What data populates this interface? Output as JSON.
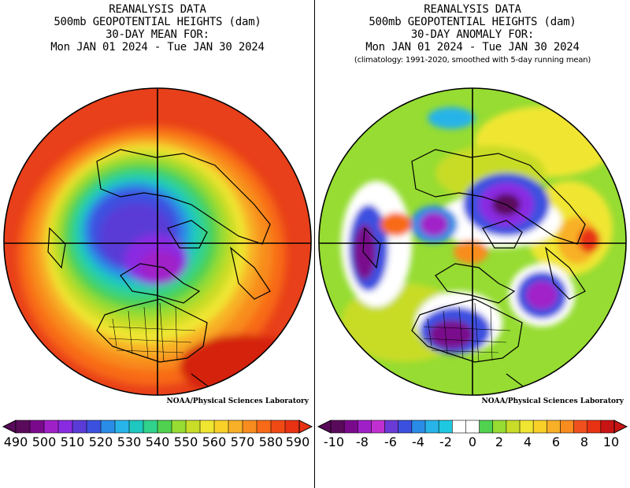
{
  "left_panel": {
    "title_lines": [
      "REANALYSIS DATA",
      "500mb GEOPOTENTIAL HEIGHTS (dam)",
      "30-DAY MEAN FOR:",
      "Mon JAN 01 2024 - Tue JAN 30 2024"
    ],
    "credit": "NOAA/Physical Sciences Laboratory",
    "colorbar": {
      "ticks": [
        "490",
        "500",
        "510",
        "520",
        "530",
        "540",
        "550",
        "560",
        "570",
        "580",
        "590"
      ],
      "colors": [
        "#5a0a5a",
        "#7a0a8c",
        "#a020c8",
        "#8a2be2",
        "#5a3bd6",
        "#3c50e0",
        "#2a8ce6",
        "#28b4e8",
        "#1ec8c0",
        "#30d28c",
        "#50d250",
        "#96dc32",
        "#c8dc28",
        "#f0e632",
        "#f8d028",
        "#f8b028",
        "#f88c1e",
        "#f86a18",
        "#f04a14",
        "#e83214"
      ]
    }
  },
  "right_panel": {
    "title_lines": [
      "REANALYSIS DATA",
      "500mb GEOPOTENTIAL HEIGHTS (dam)",
      "30-DAY ANOMALY FOR:",
      "Mon JAN 01 2024 - Tue JAN 30 2024"
    ],
    "note": "(climatology: 1991-2020, smoothed with 5-day running mean)",
    "credit": "NOAA/Physical Sciences Laboratory",
    "colorbar": {
      "ticks": [
        "-10",
        "-8",
        "-6",
        "-4",
        "-2",
        "0",
        "2",
        "4",
        "6",
        "8",
        "10"
      ],
      "colors": [
        "#5a0a5a",
        "#7a0a8c",
        "#a020c8",
        "#c030d0",
        "#6a3bd6",
        "#3c50e0",
        "#2a8ce6",
        "#28b4e8",
        "#1ec8e0",
        "#ffffff",
        "#ffffff",
        "#50d250",
        "#96dc32",
        "#c8dc28",
        "#f0e632",
        "#f8d028",
        "#f8b028",
        "#f88c1e",
        "#f0501e",
        "#e83214",
        "#c81414"
      ]
    }
  }
}
